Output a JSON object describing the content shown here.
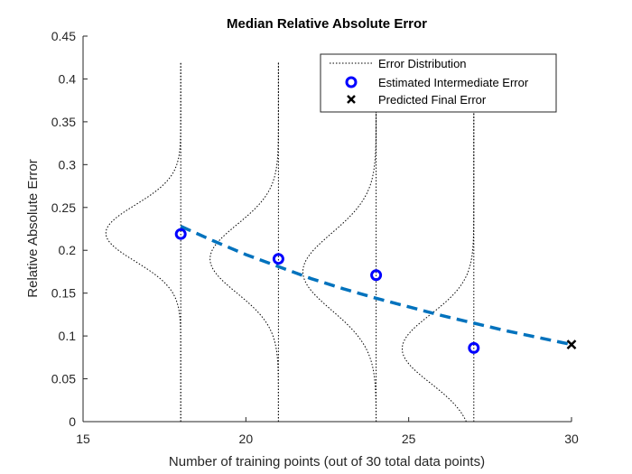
{
  "chart_data": {
    "type": "scatter",
    "title": "Median Relative Absolute Error",
    "xlabel": "Number of training points (out of 30 total data points)",
    "ylabel": "Relative Absolute Error",
    "xlim": [
      15,
      30
    ],
    "ylim": [
      0,
      0.45
    ],
    "xticks": [
      15,
      20,
      25,
      30
    ],
    "xtick_labels": [
      "15",
      "20",
      "25",
      "30"
    ],
    "yticks": [
      0,
      0.05,
      0.1,
      0.15,
      0.2,
      0.25,
      0.3,
      0.35,
      0.4,
      0.45
    ],
    "ytick_labels": [
      "0",
      "0.05",
      "0.1",
      "0.15",
      "0.2",
      "0.25",
      "0.3",
      "0.35",
      "0.4",
      "0.45"
    ],
    "grid": false,
    "legend_position": "top-right",
    "legend": [
      {
        "label": "Error Distribution",
        "style": "dotted-line"
      },
      {
        "label": "Estimated Intermediate Error",
        "style": "blue-circle"
      },
      {
        "label": "Predicted Final Error",
        "style": "black-x"
      }
    ],
    "error_distributions": [
      {
        "x": 18,
        "mean": 0.22,
        "sd": 0.033,
        "width": 2.3,
        "ymin": 0.0,
        "ymax": 0.42
      },
      {
        "x": 21,
        "mean": 0.19,
        "sd": 0.04,
        "width": 2.1,
        "ymin": 0.0,
        "ymax": 0.42
      },
      {
        "x": 24,
        "mean": 0.175,
        "sd": 0.045,
        "width": 2.25,
        "ymin": 0.0,
        "ymax": 0.42
      },
      {
        "x": 27,
        "mean": 0.085,
        "sd": 0.04,
        "width": 2.2,
        "ymin": 0.0,
        "ymax": 0.42
      }
    ],
    "series": [
      {
        "name": "Estimated Intermediate Error",
        "x": [
          18,
          21,
          24,
          27
        ],
        "y": [
          0.219,
          0.19,
          0.171,
          0.086
        ]
      },
      {
        "name": "Predicted Final Error",
        "x": [
          30
        ],
        "y": [
          0.09
        ]
      }
    ],
    "fit_curve": {
      "x": [
        18,
        19,
        20,
        21,
        22,
        23,
        24,
        25,
        26,
        27,
        28,
        29,
        30
      ],
      "y": [
        0.228,
        0.211,
        0.195,
        0.181,
        0.167,
        0.155,
        0.144,
        0.134,
        0.124,
        0.115,
        0.106,
        0.098,
        0.09
      ]
    },
    "colors": {
      "intermediate": "#0000ff",
      "fit": "#0072bd",
      "final": "#000000",
      "distribution": "#000000",
      "axis": "#262626"
    }
  }
}
